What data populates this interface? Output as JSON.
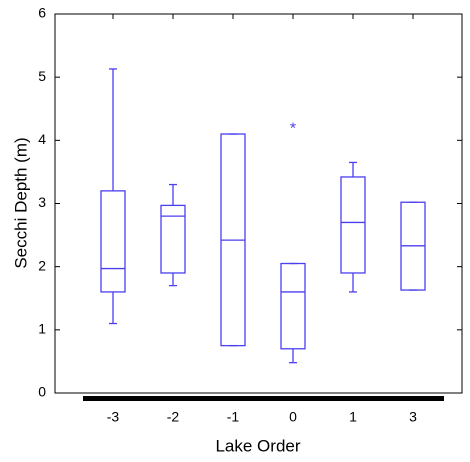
{
  "chart_data": {
    "type": "box",
    "x_label": "Lake Order",
    "y_label": "Secchi Depth (m)",
    "categories": [
      "-3",
      "-2",
      "-1",
      "0",
      "1",
      "3"
    ],
    "color": "#4b3ff0",
    "boxes": [
      {
        "whislo": 1.1,
        "q1": 1.6,
        "med": 1.97,
        "q3": 3.2,
        "whishi": 5.13
      },
      {
        "whislo": 1.7,
        "q1": 1.9,
        "med": 2.8,
        "q3": 2.97,
        "whishi": 3.3
      },
      {
        "whislo": 0.75,
        "q1": 0.75,
        "med": 2.42,
        "q3": 4.1,
        "whishi": 4.1
      },
      {
        "whislo": 0.48,
        "q1": 0.7,
        "med": 1.6,
        "q3": 2.05,
        "whishi": 2.05,
        "fliers": [
          4.22
        ]
      },
      {
        "whislo": 1.6,
        "q1": 1.9,
        "med": 2.7,
        "q3": 3.42,
        "whishi": 3.65
      },
      {
        "whislo": 1.63,
        "q1": 1.63,
        "med": 2.33,
        "q3": 3.02,
        "whishi": 3.02
      }
    ],
    "ylim": [
      0,
      6
    ],
    "yticks": [
      0,
      1,
      2,
      3,
      4,
      5,
      6
    ]
  }
}
